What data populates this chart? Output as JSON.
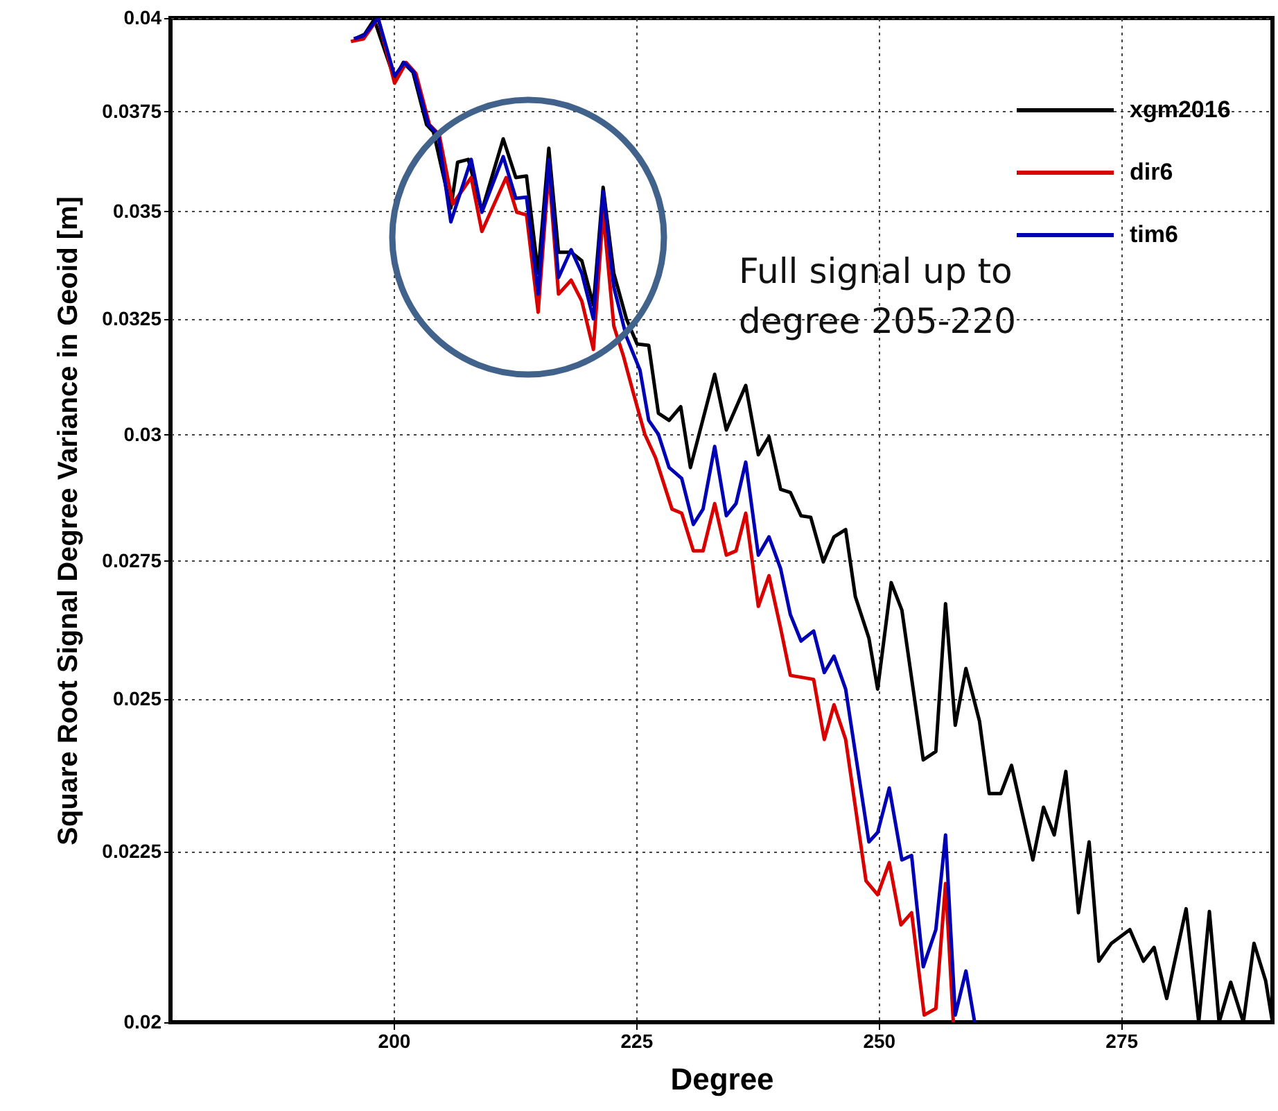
{
  "chart_data": {
    "type": "line",
    "xlabel": "Degree",
    "ylabel": "Square Root Signal Degree Variance in Geoid [m]",
    "xlim": [
      177,
      290.6
    ],
    "ylim": [
      0.02,
      0.04
    ],
    "xticks": [
      200,
      225,
      250,
      275
    ],
    "yticks": [
      0.02,
      0.0225,
      0.025,
      0.0275,
      0.03,
      0.0325,
      0.035,
      0.0375,
      0.04
    ],
    "log": "y",
    "grid": true,
    "legend": "top right",
    "annotations": [
      "Full signal up to degree 205-220"
    ],
    "series": [
      {
        "name": "xgm2016",
        "color": "#000000",
        "x": [
          196.0,
          197.0,
          198.0,
          200.1,
          201.0,
          202.0,
          203.4,
          204.1,
          205.9,
          206.6,
          207.7,
          209.1,
          211.3,
          212.6,
          213.7,
          214.9,
          216.0,
          217.0,
          218.3,
          219.4,
          220.6,
          221.6,
          222.7,
          224.0,
          225.1,
          226.3,
          227.3,
          228.4,
          229.6,
          230.6,
          233.1,
          234.3,
          236.3,
          237.6,
          238.7,
          239.9,
          240.9,
          242.0,
          243.0,
          244.3,
          245.4,
          246.6,
          247.6,
          249.0,
          249.9,
          251.3,
          252.4,
          254.6,
          255.9,
          256.9,
          257.9,
          259.0,
          260.4,
          261.4,
          262.6,
          263.7,
          265.9,
          267.0,
          268.1,
          269.3,
          270.6,
          271.7,
          272.7,
          274.0,
          275.9,
          277.3,
          278.4,
          279.7,
          281.7,
          283.0,
          284.1,
          285.1,
          286.3,
          287.6,
          288.7,
          289.9,
          290.6
        ],
        "values": [
          0.03943,
          0.03955,
          0.03996,
          0.03835,
          0.03879,
          0.03853,
          0.03716,
          0.03698,
          0.03508,
          0.03621,
          0.03628,
          0.03502,
          0.0368,
          0.03583,
          0.03587,
          0.03354,
          0.03656,
          0.03403,
          0.03403,
          0.03383,
          0.03281,
          0.03559,
          0.03354,
          0.0325,
          0.03194,
          0.03191,
          0.03045,
          0.0303,
          0.03059,
          0.02933,
          0.03128,
          0.0301,
          0.03104,
          0.02959,
          0.02996,
          0.02889,
          0.02883,
          0.02837,
          0.02834,
          0.02748,
          0.02796,
          0.0281,
          0.02683,
          0.02607,
          0.02517,
          0.02709,
          0.02658,
          0.02397,
          0.02411,
          0.0267,
          0.02455,
          0.02553,
          0.02462,
          0.02342,
          0.02342,
          0.02388,
          0.02237,
          0.0232,
          0.02276,
          0.02378,
          0.02157,
          0.02265,
          0.02086,
          0.02112,
          0.02132,
          0.02086,
          0.02106,
          0.02033,
          0.02163,
          0.02,
          0.02159,
          0.02,
          0.02056,
          0.02,
          0.02112,
          0.02058,
          0.02
        ]
      },
      {
        "name": "dir6",
        "color": "#d90000",
        "x": [
          195.6,
          196.9,
          198.4,
          200.1,
          201.3,
          202.3,
          203.7,
          204.7,
          206.1,
          208.0,
          209.1,
          211.6,
          212.7,
          213.7,
          214.9,
          216.0,
          217.0,
          218.3,
          219.4,
          220.6,
          221.6,
          222.7,
          223.7,
          224.7,
          225.9,
          227.0,
          228.7,
          229.7,
          230.9,
          231.9,
          233.1,
          234.3,
          235.3,
          236.3,
          237.6,
          238.7,
          239.9,
          240.9,
          243.3,
          244.4,
          245.4,
          246.6,
          248.7,
          249.9,
          251.1,
          252.3,
          253.4,
          254.7,
          255.9,
          256.9,
          257.7
        ],
        "values": [
          0.03936,
          0.03943,
          0.04,
          0.03824,
          0.03879,
          0.0385,
          0.03716,
          0.03691,
          0.03518,
          0.03583,
          0.03452,
          0.03583,
          0.03498,
          0.03492,
          0.03265,
          0.036,
          0.03306,
          0.03338,
          0.0329,
          0.03182,
          0.03498,
          0.03234,
          0.03167,
          0.03089,
          0.03001,
          0.02953,
          0.0285,
          0.02842,
          0.02769,
          0.02769,
          0.02861,
          0.02761,
          0.02769,
          0.02842,
          0.02665,
          0.02722,
          0.02625,
          0.02541,
          0.02534,
          0.02431,
          0.0249,
          0.02431,
          0.02205,
          0.02184,
          0.02233,
          0.02139,
          0.02157,
          0.0201,
          0.02019,
          0.02201,
          0.02
        ]
      },
      {
        "name": "tim6",
        "color": "#0000b4",
        "x": [
          195.9,
          196.9,
          198.4,
          200.1,
          201.1,
          202.1,
          203.6,
          204.6,
          205.9,
          208.0,
          209.1,
          211.3,
          212.6,
          213.7,
          214.9,
          216.0,
          217.0,
          218.3,
          219.4,
          220.6,
          221.6,
          222.7,
          224.0,
          225.4,
          226.3,
          227.3,
          228.4,
          229.7,
          230.9,
          231.9,
          233.1,
          234.3,
          235.3,
          236.3,
          237.6,
          238.7,
          239.9,
          240.9,
          242.0,
          243.3,
          244.4,
          245.4,
          246.6,
          249.0,
          249.9,
          251.1,
          252.4,
          253.4,
          254.6,
          255.9,
          256.9,
          257.9,
          259.0,
          259.9
        ],
        "values": [
          0.03943,
          0.03951,
          0.04,
          0.03843,
          0.03879,
          0.03853,
          0.03716,
          0.03691,
          0.03475,
          0.03628,
          0.03498,
          0.03635,
          0.03532,
          0.03535,
          0.03306,
          0.03628,
          0.03344,
          0.03409,
          0.03354,
          0.0325,
          0.03549,
          0.03322,
          0.0321,
          0.03137,
          0.0303,
          0.03001,
          0.02933,
          0.02911,
          0.0282,
          0.0285,
          0.02976,
          0.02837,
          0.02861,
          0.02944,
          0.02761,
          0.02796,
          0.02735,
          0.0265,
          0.02602,
          0.0262,
          0.02546,
          0.02575,
          0.02517,
          0.02265,
          0.0228,
          0.02351,
          0.02237,
          0.02244,
          0.02078,
          0.02132,
          0.02276,
          0.0201,
          0.02072,
          0.02
        ]
      }
    ]
  }
}
